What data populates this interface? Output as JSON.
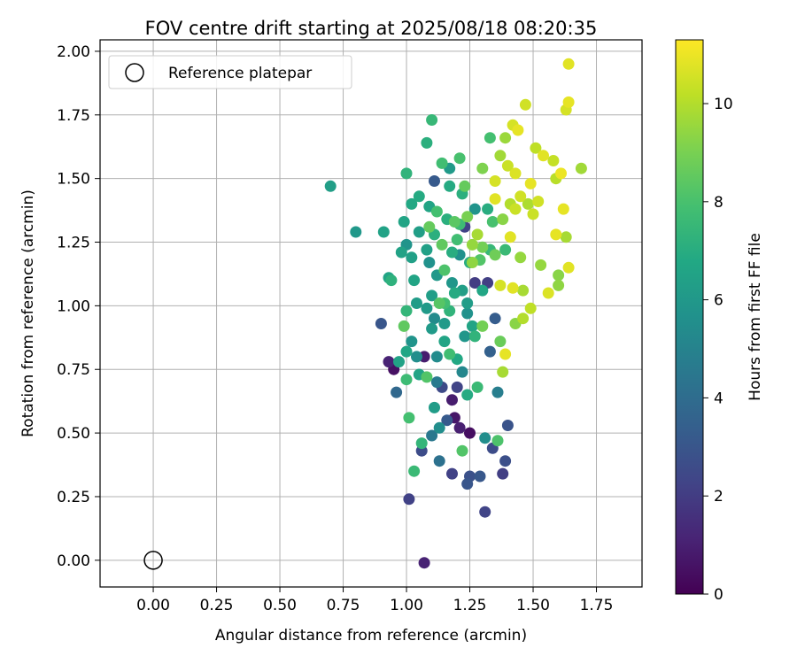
{
  "chart_data": {
    "type": "scatter",
    "title": "FOV centre drift starting at 2025/08/18 08:20:35",
    "xlabel": "Angular distance from reference (arcmin)",
    "ylabel": "Rotation from reference (arcmin)",
    "xlim": [
      -0.21,
      1.93
    ],
    "ylim": [
      -0.105,
      2.045
    ],
    "xticks": [
      "0.00",
      "0.25",
      "0.50",
      "0.75",
      "1.00",
      "1.25",
      "1.50",
      "1.75"
    ],
    "yticks": [
      "0.00",
      "0.25",
      "0.50",
      "0.75",
      "1.00",
      "1.25",
      "1.50",
      "1.75",
      "2.00"
    ],
    "grid": true,
    "legend": {
      "placement": "top-left",
      "entries": [
        "Reference platepar"
      ]
    },
    "reference_point": {
      "x": 0.0,
      "y": 0.0,
      "label": "Reference platepar"
    },
    "colorbar": {
      "label": "Hours from first FF file",
      "colormap": "viridis",
      "range": [
        0,
        11.3
      ],
      "ticks": [
        "0",
        "2",
        "4",
        "6",
        "8",
        "10"
      ]
    },
    "series": [
      {
        "color_by": "hours",
        "points": [
          [
            0.7,
            1.47,
            6.3
          ],
          [
            0.8,
            1.29,
            6.0
          ],
          [
            0.91,
            1.29,
            6.5
          ],
          [
            0.9,
            0.93,
            3.0
          ],
          [
            0.93,
            1.11,
            6.6
          ],
          [
            0.94,
            1.1,
            7.2
          ],
          [
            0.93,
            0.78,
            1.1
          ],
          [
            0.95,
            0.75,
            0.5
          ],
          [
            0.96,
            0.66,
            3.8
          ],
          [
            0.97,
            0.78,
            6.5
          ],
          [
            0.98,
            1.21,
            6.5
          ],
          [
            0.99,
            1.33,
            6.6
          ],
          [
            0.99,
            0.92,
            8.5
          ],
          [
            1.0,
            1.52,
            7.3
          ],
          [
            1.0,
            1.24,
            5.8
          ],
          [
            1.0,
            0.98,
            7.4
          ],
          [
            1.0,
            0.82,
            6.7
          ],
          [
            1.0,
            0.71,
            7.7
          ],
          [
            1.01,
            0.24,
            2.2
          ],
          [
            1.01,
            0.56,
            7.9
          ],
          [
            1.02,
            1.4,
            6.8
          ],
          [
            1.02,
            1.19,
            6.4
          ],
          [
            1.02,
            0.86,
            5.8
          ],
          [
            1.03,
            1.1,
            6.6
          ],
          [
            1.03,
            0.35,
            7.6
          ],
          [
            1.04,
            0.8,
            5.5
          ],
          [
            1.04,
            1.01,
            6.2
          ],
          [
            1.05,
            1.43,
            6.9
          ],
          [
            1.05,
            1.29,
            6.3
          ],
          [
            1.06,
            0.46,
            7.4
          ],
          [
            1.06,
            0.43,
            2.6
          ],
          [
            1.07,
            0.8,
            0.9
          ],
          [
            1.07,
            -0.01,
            1.1
          ],
          [
            1.08,
            1.64,
            7.1
          ],
          [
            1.08,
            0.72,
            8.2
          ],
          [
            1.08,
            0.99,
            6.1
          ],
          [
            1.09,
            1.39,
            6.6
          ],
          [
            1.09,
            1.17,
            5.7
          ],
          [
            1.1,
            1.73,
            7.5
          ],
          [
            1.1,
            1.04,
            6.3
          ],
          [
            1.1,
            0.91,
            6.1
          ],
          [
            1.1,
            0.49,
            4.5
          ],
          [
            1.11,
            1.49,
            3.2
          ],
          [
            1.11,
            1.28,
            7.1
          ],
          [
            1.11,
            0.6,
            6.2
          ],
          [
            1.12,
            1.37,
            7.9
          ],
          [
            1.12,
            1.12,
            6.0
          ],
          [
            1.12,
            0.8,
            5.4
          ],
          [
            1.13,
            0.52,
            5.5
          ],
          [
            1.13,
            0.39,
            4.2
          ],
          [
            1.14,
            1.56,
            7.8
          ],
          [
            1.14,
            1.24,
            8.5
          ],
          [
            1.14,
            0.68,
            2.5
          ],
          [
            1.15,
            1.01,
            7.8
          ],
          [
            1.15,
            0.86,
            6.6
          ],
          [
            1.16,
            1.34,
            7.1
          ],
          [
            1.16,
            0.55,
            3.2
          ],
          [
            1.17,
            1.54,
            6.1
          ],
          [
            1.17,
            1.47,
            6.9
          ],
          [
            1.17,
            0.81,
            7.8
          ],
          [
            1.18,
            1.09,
            5.9
          ],
          [
            1.18,
            0.63,
            0.9
          ],
          [
            1.18,
            0.34,
            2.2
          ],
          [
            1.19,
            1.33,
            8.4
          ],
          [
            1.19,
            0.56,
            0.7
          ],
          [
            1.2,
            1.26,
            7.8
          ],
          [
            1.2,
            0.79,
            6.8
          ],
          [
            1.2,
            0.68,
            2.3
          ],
          [
            1.21,
            1.58,
            8.0
          ],
          [
            1.21,
            1.2,
            5.6
          ],
          [
            1.21,
            0.52,
            1.0
          ],
          [
            1.22,
            1.44,
            7.1
          ],
          [
            1.22,
            1.06,
            6.3
          ],
          [
            1.22,
            0.43,
            8.2
          ],
          [
            1.23,
            1.47,
            8.6
          ],
          [
            1.23,
            1.31,
            2.2
          ],
          [
            1.23,
            0.88,
            5.9
          ],
          [
            1.24,
            1.35,
            9.0
          ],
          [
            1.24,
            1.01,
            6.2
          ],
          [
            1.24,
            0.65,
            6.9
          ],
          [
            1.24,
            0.3,
            3.0
          ],
          [
            1.25,
            1.17,
            7.0
          ],
          [
            1.25,
            0.33,
            2.8
          ],
          [
            1.25,
            0.5,
            0.4
          ],
          [
            1.26,
            1.24,
            9.5
          ],
          [
            1.26,
            0.92,
            6.6
          ],
          [
            1.27,
            1.38,
            5.8
          ],
          [
            1.27,
            1.09,
            2.0
          ],
          [
            1.28,
            1.28,
            9.8
          ],
          [
            1.28,
            0.68,
            7.6
          ],
          [
            1.29,
            0.33,
            3.1
          ],
          [
            1.3,
            1.54,
            9.1
          ],
          [
            1.3,
            1.06,
            6.7
          ],
          [
            1.3,
            0.92,
            8.9
          ],
          [
            1.31,
            0.19,
            2.3
          ],
          [
            1.31,
            0.48,
            5.5
          ],
          [
            1.32,
            1.38,
            7.0
          ],
          [
            1.32,
            1.09,
            2.1
          ],
          [
            1.33,
            1.66,
            7.9
          ],
          [
            1.33,
            1.22,
            7.5
          ],
          [
            1.33,
            0.82,
            3.5
          ],
          [
            1.34,
            0.44,
            2.6
          ],
          [
            1.35,
            1.49,
            10.6
          ],
          [
            1.35,
            1.42,
            10.8
          ],
          [
            1.35,
            1.2,
            8.8
          ],
          [
            1.35,
            0.95,
            3.3
          ],
          [
            1.36,
            0.66,
            4.8
          ],
          [
            1.36,
            0.47,
            8.1
          ],
          [
            1.37,
            1.59,
            9.7
          ],
          [
            1.37,
            1.08,
            10.6
          ],
          [
            1.37,
            0.86,
            8.7
          ],
          [
            1.38,
            1.34,
            9.3
          ],
          [
            1.38,
            0.74,
            9.8
          ],
          [
            1.38,
            0.34,
            2.1
          ],
          [
            1.39,
            1.66,
            9.6
          ],
          [
            1.39,
            1.22,
            7.6
          ],
          [
            1.39,
            0.81,
            10.9
          ],
          [
            1.39,
            0.39,
            2.7
          ],
          [
            1.4,
            1.55,
            10.4
          ],
          [
            1.4,
            0.53,
            2.9
          ],
          [
            1.41,
            1.4,
            10.0
          ],
          [
            1.41,
            1.27,
            10.8
          ],
          [
            1.42,
            1.71,
            10.6
          ],
          [
            1.42,
            1.07,
            10.8
          ],
          [
            1.43,
            1.52,
            10.7
          ],
          [
            1.43,
            1.38,
            10.4
          ],
          [
            1.43,
            0.93,
            9.3
          ],
          [
            1.44,
            1.69,
            10.9
          ],
          [
            1.45,
            1.43,
            10.5
          ],
          [
            1.45,
            1.19,
            9.5
          ],
          [
            1.46,
            1.06,
            9.8
          ],
          [
            1.46,
            0.95,
            10.0
          ],
          [
            1.47,
            1.79,
            10.5
          ],
          [
            1.48,
            1.4,
            9.9
          ],
          [
            1.49,
            1.48,
            10.9
          ],
          [
            1.49,
            0.99,
            10.2
          ],
          [
            1.5,
            1.36,
            10.4
          ],
          [
            1.51,
            1.62,
            10.2
          ],
          [
            1.52,
            1.41,
            10.5
          ],
          [
            1.53,
            1.16,
            9.5
          ],
          [
            1.54,
            1.59,
            10.8
          ],
          [
            1.56,
            1.05,
            10.7
          ],
          [
            1.58,
            1.57,
            10.3
          ],
          [
            1.59,
            1.5,
            10.1
          ],
          [
            1.59,
            1.28,
            10.9
          ],
          [
            1.6,
            1.08,
            9.4
          ],
          [
            1.6,
            1.12,
            9.3
          ],
          [
            1.61,
            1.52,
            11.0
          ],
          [
            1.62,
            1.38,
            10.9
          ],
          [
            1.63,
            1.77,
            10.6
          ],
          [
            1.63,
            1.27,
            9.8
          ],
          [
            1.64,
            1.8,
            10.9
          ],
          [
            1.64,
            1.95,
            10.8
          ],
          [
            1.64,
            1.15,
            10.8
          ],
          [
            1.69,
            1.54,
            9.7
          ],
          [
            1.15,
            1.14,
            8.1
          ],
          [
            1.17,
            0.98,
            7.3
          ],
          [
            1.21,
            1.32,
            7.7
          ],
          [
            1.26,
            1.17,
            9.4
          ],
          [
            1.09,
            1.31,
            8.6
          ],
          [
            1.13,
            1.01,
            8.3
          ],
          [
            1.19,
            1.05,
            6.9
          ],
          [
            1.08,
            1.22,
            6.4
          ],
          [
            1.22,
            0.74,
            5.2
          ],
          [
            1.12,
            0.7,
            4.6
          ],
          [
            1.05,
            0.73,
            6.6
          ],
          [
            1.15,
            0.93,
            6.1
          ],
          [
            1.27,
            0.88,
            7.3
          ],
          [
            1.3,
            1.23,
            8.9
          ],
          [
            1.34,
            1.33,
            8.0
          ],
          [
            1.18,
            1.21,
            7.0
          ],
          [
            1.11,
            0.95,
            5.4
          ],
          [
            1.24,
            0.97,
            5.7
          ],
          [
            1.29,
            1.18,
            8.2
          ]
        ]
      }
    ]
  }
}
